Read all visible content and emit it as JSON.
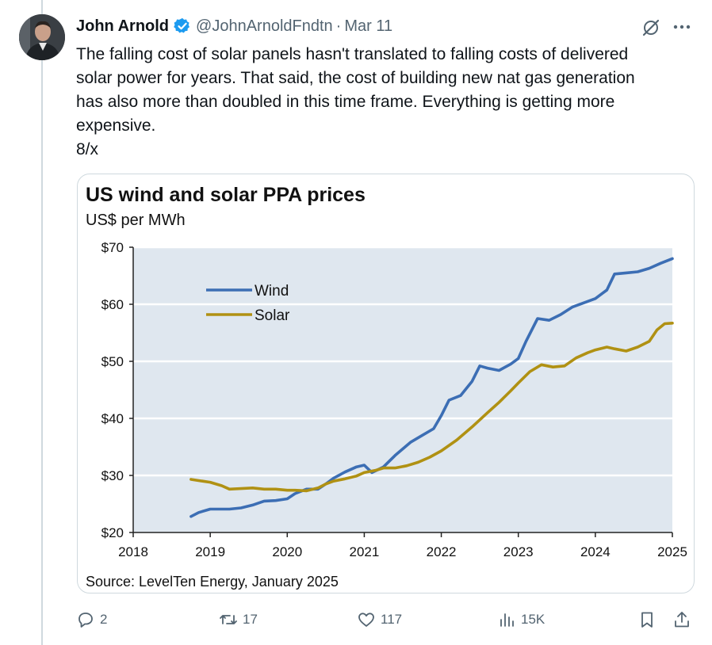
{
  "tweet": {
    "author_name": "John Arnold",
    "handle": "@JohnArnoldFndtn",
    "separator": "·",
    "date": "Mar 11",
    "text_lines": [
      "The falling cost of solar panels hasn't translated to falling costs of delivered",
      "solar power for years. That said, the cost of building new nat gas generation",
      "has also more than doubled in this time frame. Everything is getting more",
      "expensive."
    ],
    "thread_marker": "8/x"
  },
  "actions": {
    "replies": "2",
    "reposts": "17",
    "likes": "117",
    "views": "15K"
  },
  "icons": {
    "verified": "verified-badge-icon",
    "grok": "grok-icon",
    "more": "more-options-icon",
    "reply": "reply-icon",
    "repost": "repost-icon",
    "like": "heart-icon",
    "views": "views-chart-icon",
    "bookmark": "bookmark-icon",
    "share": "share-icon"
  },
  "colors": {
    "wind": "#3c6eb4",
    "solar": "#b09113",
    "plot_bg": "#dfe7ef",
    "verified": "#1d9bf0"
  },
  "chart_data": {
    "type": "line",
    "title": "US wind and solar PPA prices",
    "subtitle": "US$ per MWh",
    "source": "Source: LevelTen Energy, January 2025",
    "xlabel": "",
    "ylabel": "US$ per MWh",
    "xlim": [
      2018,
      2025
    ],
    "ylim": [
      20,
      70
    ],
    "x_ticks": [
      2018,
      2019,
      2020,
      2021,
      2022,
      2023,
      2024,
      2025
    ],
    "y_ticks": [
      20,
      30,
      40,
      50,
      60,
      70
    ],
    "y_tick_labels": [
      "$20",
      "$30",
      "$40",
      "$50",
      "$60",
      "$70"
    ],
    "legend_position": "top-left",
    "series": [
      {
        "name": "Wind",
        "x": [
          2018.75,
          2018.85,
          2019.0,
          2019.25,
          2019.4,
          2019.55,
          2019.7,
          2019.85,
          2020.0,
          2020.1,
          2020.25,
          2020.4,
          2020.5,
          2020.6,
          2020.75,
          2020.9,
          2021.0,
          2021.1,
          2021.25,
          2021.4,
          2021.6,
          2021.75,
          2021.9,
          2022.0,
          2022.1,
          2022.25,
          2022.4,
          2022.5,
          2022.6,
          2022.75,
          2022.9,
          2023.0,
          2023.1,
          2023.25,
          2023.4,
          2023.55,
          2023.7,
          2023.9,
          2024.0,
          2024.15,
          2024.25,
          2024.4,
          2024.55,
          2024.7,
          2024.85,
          2025.0
        ],
        "values": [
          22.8,
          23.5,
          24.1,
          24.1,
          24.3,
          24.8,
          25.5,
          25.6,
          25.9,
          26.8,
          27.6,
          27.6,
          28.5,
          29.5,
          30.6,
          31.5,
          31.8,
          30.5,
          31.5,
          33.5,
          35.8,
          37.0,
          38.2,
          40.5,
          43.2,
          44.0,
          46.5,
          49.2,
          48.8,
          48.4,
          49.5,
          50.5,
          53.5,
          57.5,
          57.2,
          58.2,
          59.5,
          60.5,
          61.0,
          62.5,
          65.3,
          65.5,
          65.7,
          66.3,
          67.2,
          68.0
        ]
      },
      {
        "name": "Solar",
        "x": [
          2018.75,
          2018.9,
          2019.0,
          2019.15,
          2019.25,
          2019.4,
          2019.55,
          2019.7,
          2019.85,
          2020.0,
          2020.1,
          2020.25,
          2020.4,
          2020.5,
          2020.6,
          2020.75,
          2020.9,
          2021.0,
          2021.15,
          2021.25,
          2021.4,
          2021.55,
          2021.7,
          2021.85,
          2022.0,
          2022.2,
          2022.4,
          2022.6,
          2022.75,
          2022.9,
          2023.0,
          2023.15,
          2023.3,
          2023.45,
          2023.6,
          2023.75,
          2023.9,
          2024.0,
          2024.15,
          2024.25,
          2024.4,
          2024.55,
          2024.7,
          2024.8,
          2024.9,
          2025.0
        ],
        "values": [
          29.3,
          29.0,
          28.8,
          28.2,
          27.6,
          27.7,
          27.8,
          27.6,
          27.6,
          27.4,
          27.4,
          27.3,
          27.8,
          28.5,
          29.0,
          29.4,
          29.9,
          30.5,
          30.9,
          31.3,
          31.3,
          31.7,
          32.3,
          33.2,
          34.3,
          36.2,
          38.5,
          41.0,
          42.8,
          44.8,
          46.2,
          48.2,
          49.4,
          49.0,
          49.2,
          50.6,
          51.5,
          52.0,
          52.5,
          52.2,
          51.8,
          52.5,
          53.5,
          55.5,
          56.6,
          56.7
        ]
      }
    ]
  }
}
